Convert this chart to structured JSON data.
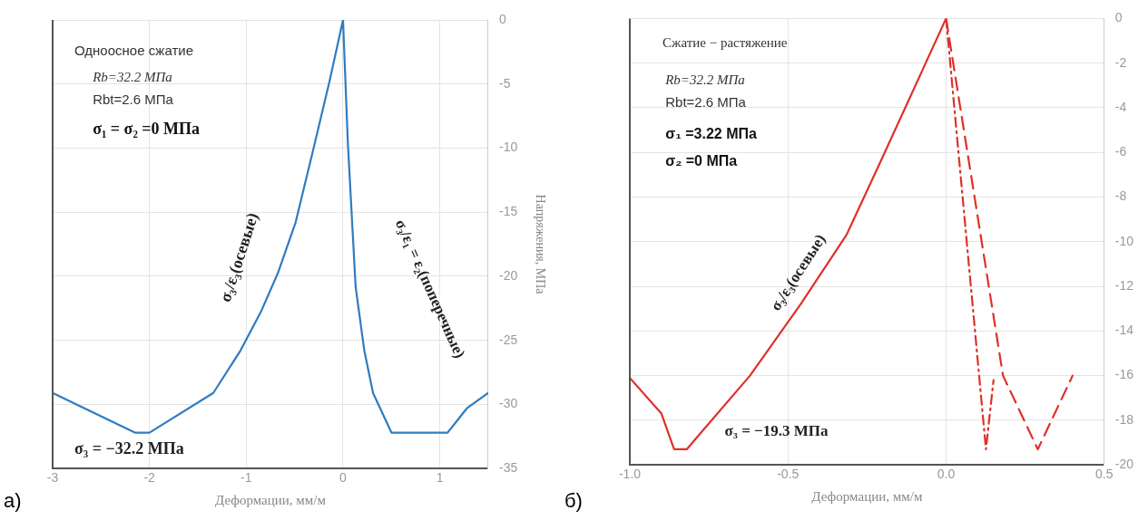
{
  "chart_data": [
    {
      "type": "line",
      "xlabel": "Деформации, мм/м",
      "ylabel": "Напряжения, МПа",
      "xlim": [
        -3,
        1.5
      ],
      "xticks": [
        -3,
        -2,
        -1,
        0,
        1
      ],
      "ylim": [
        -35,
        0
      ],
      "yticks": [
        0,
        -5,
        -10,
        -15,
        -20,
        -25,
        -30,
        -35
      ],
      "grid": true,
      "series": [
        {
          "color": "#2e7cc0",
          "line_style": "solid",
          "x": [
            -3,
            -2.15,
            -2.0,
            -1.34,
            -1.06,
            -0.85,
            -0.67,
            -0.49,
            -0.31,
            -0.14,
            0,
            0.05,
            0.13,
            0.22,
            0.31,
            0.5,
            1.08,
            1.28,
            1.5
          ],
          "values": [
            -29.1,
            -32.2,
            -32.2,
            -29.1,
            -25.8,
            -22.8,
            -19.7,
            -15.8,
            -10.2,
            -4.8,
            0,
            -9.6,
            -20.8,
            -25.8,
            -29.1,
            -32.2,
            -32.2,
            -30.3,
            -29.1
          ]
        }
      ],
      "annotations": [
        "Одноосное сжатие",
        "Rb=32.2 МПа",
        "Rbt=2.6 МПа",
        "σ₁ = σ₂ =0 МПа",
        "σ₃/ε₃(осевые)",
        "σ₃/ε₁ = ε₂(поперечные)",
        "σ₃ = −32.2 МПа",
        "а)"
      ]
    },
    {
      "type": "line",
      "xlabel": "Деформации, мм/м",
      "xlim": [
        -1,
        0.5
      ],
      "xticks": [
        {
          "value": -1,
          "label": "-1.0"
        },
        {
          "value": -0.5,
          "label": "-0.5"
        },
        {
          "value": 0,
          "label": "0.0"
        },
        {
          "value": 0.5,
          "label": "0.5"
        }
      ],
      "ylim": [
        -20,
        0
      ],
      "yticks": [
        0,
        -2,
        -4,
        -6,
        -8,
        -10,
        -12,
        -14,
        -16,
        -18,
        -20
      ],
      "grid": true,
      "series": [
        {
          "color": "#e0302a",
          "line_style": "solid",
          "x": [
            -1,
            -0.9,
            -0.86,
            -0.82,
            -0.62,
            -0.46,
            -0.315,
            -0.21,
            0
          ],
          "values": [
            -16.1,
            -17.7,
            -19.3,
            -19.3,
            -16.0,
            -12.8,
            -9.7,
            -6.5,
            0
          ]
        },
        {
          "color": "#e0302a",
          "line_style": "dashdot",
          "x": [
            0,
            0.126,
            0.15
          ],
          "values": [
            0,
            -19.3,
            -16.2
          ]
        },
        {
          "color": "#e0302a",
          "line_style": "dashed",
          "x": [
            0,
            0.18,
            0.29,
            0.4
          ],
          "values": [
            0,
            -16,
            -19.3,
            -16
          ]
        }
      ],
      "annotations": [
        "Сжатие − растяжение",
        "Rb=32.2 МПа",
        "Rbt=2.6 МПа",
        "σ₁ =3.22 МПа",
        "σ₂ =0 МПа",
        "σ₃/ε₃(осевые)",
        "σ₃ = −19.3 МПа",
        "б)"
      ]
    }
  ]
}
